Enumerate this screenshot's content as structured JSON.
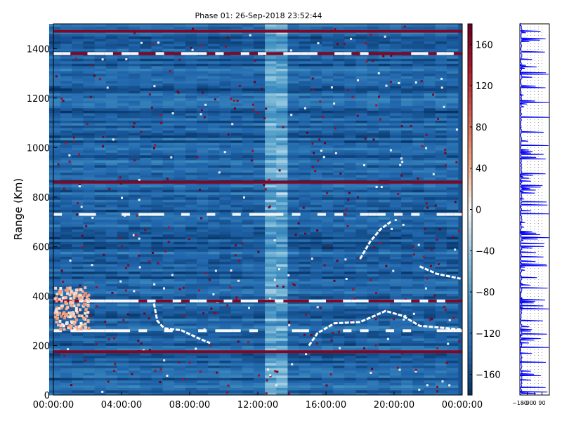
{
  "chart_data": [
    {
      "type": "heatmap",
      "title": "Phase 01: 26-Sep-2018 23:52:44",
      "ylabel": "Range (Km)",
      "xlabel": "",
      "x_tick_labels": [
        "00:00:00",
        "04:00:00",
        "08:00:00",
        "12:00:00",
        "16:00:00",
        "20:00:00",
        "00:00:00"
      ],
      "x_tick_hours": [
        0,
        4,
        8,
        12,
        16,
        20,
        24
      ],
      "xlim_hours": [
        0,
        24
      ],
      "y_ticks": [
        0,
        200,
        400,
        600,
        800,
        1000,
        1200,
        1400
      ],
      "ylim": [
        0,
        1500
      ],
      "colorbar": {
        "ticks": [
          160,
          120,
          80,
          40,
          0,
          -40,
          -80,
          -120,
          -160
        ],
        "range": [
          -180,
          180
        ],
        "colormap": "RdBu_r",
        "colors": [
          "#053061",
          "#2166ac",
          "#4393c3",
          "#92c5de",
          "#f7f7f7",
          "#f4a582",
          "#d6604d",
          "#b2182b",
          "#67001f"
        ]
      },
      "background_value": -150,
      "red_bands_km": [
        1470,
        1380,
        860,
        380,
        175
      ],
      "white_bands_km": [
        1380,
        730,
        380,
        260
      ],
      "light_column_hours": [
        12.2,
        13.6
      ],
      "echo_traces": [
        {
          "points": [
            [
              5.9,
              370
            ],
            [
              6.1,
              300
            ],
            [
              6.5,
              270
            ],
            [
              7.5,
              262
            ],
            [
              8.5,
              230
            ],
            [
              9.2,
              210
            ]
          ]
        },
        {
          "points": [
            [
              15.0,
              200
            ],
            [
              15.5,
              250
            ],
            [
              16.5,
              290
            ],
            [
              18.0,
              295
            ],
            [
              19.5,
              340
            ],
            [
              20.5,
              320
            ],
            [
              21.5,
              280
            ],
            [
              23.9,
              265
            ]
          ]
        },
        {
          "points": [
            [
              18.0,
              550
            ],
            [
              18.6,
              620
            ],
            [
              19.2,
              670
            ],
            [
              19.8,
              700
            ]
          ]
        },
        {
          "points": [
            [
              21.5,
              520
            ],
            [
              22.5,
              490
            ],
            [
              23.9,
              470
            ]
          ]
        }
      ],
      "blob_region": {
        "hours": [
          0,
          2.0
        ],
        "km": [
          270,
          440
        ],
        "value": 30
      }
    },
    {
      "type": "line",
      "x_tick_labels": [
        "−180",
        "−90",
        "0",
        "90"
      ],
      "x_ticks": [
        -180,
        -90,
        0,
        90
      ],
      "xlim": [
        -180,
        180
      ],
      "ylim": [
        0,
        1500
      ],
      "series_color": "#0000ff"
    }
  ]
}
